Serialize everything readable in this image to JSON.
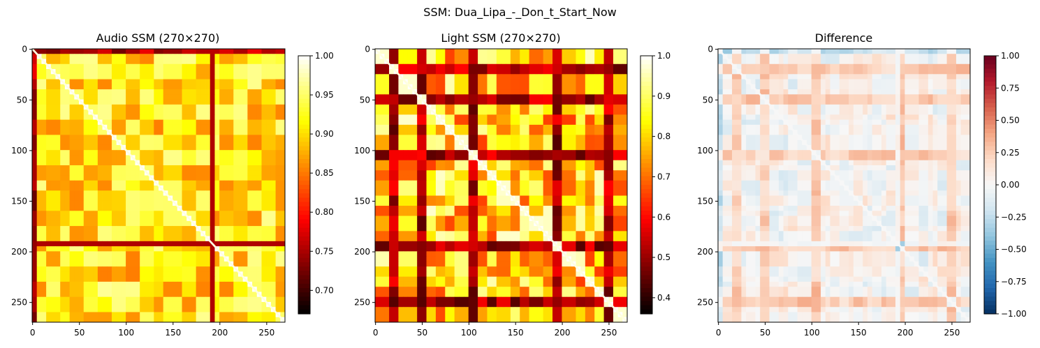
{
  "figure": {
    "suptitle": "SSM: Dua_Lipa_-_Don_t_Start_Now"
  },
  "chart_data": [
    {
      "type": "heatmap",
      "title": "Audio SSM (270×270)",
      "matrix_size": 270,
      "colormap": "hot",
      "xticks": [
        0,
        50,
        100,
        150,
        200,
        250
      ],
      "yticks": [
        0,
        50,
        100,
        150,
        200,
        250
      ],
      "colorbar": {
        "range": [
          0.67,
          1.0
        ],
        "ticks": [
          0.7,
          0.75,
          0.8,
          0.85,
          0.9,
          0.95,
          1.0
        ],
        "tick_labels": [
          "0.70",
          "0.75",
          "0.80",
          "0.85",
          "0.90",
          "0.95",
          "1.00"
        ]
      },
      "block_boundaries": [
        0,
        5,
        15,
        28,
        40,
        55,
        70,
        85,
        100,
        115,
        130,
        140,
        160,
        175,
        190,
        200,
        215,
        230,
        245,
        260,
        270
      ]
    },
    {
      "type": "heatmap",
      "title": "Light SSM (270×270)",
      "matrix_size": 270,
      "colormap": "hot",
      "xticks": [
        0,
        50,
        100,
        150,
        200,
        250
      ],
      "yticks": [
        0,
        50,
        100,
        150,
        200,
        250
      ],
      "colorbar": {
        "range": [
          0.36,
          1.0
        ],
        "ticks": [
          0.4,
          0.5,
          0.6,
          0.7,
          0.8,
          0.9,
          1.0
        ],
        "tick_labels": [
          "0.4",
          "0.5",
          "0.6",
          "0.7",
          "0.8",
          "0.9",
          "1.0"
        ]
      },
      "block_boundaries": [
        0,
        15,
        25,
        45,
        55,
        65,
        75,
        85,
        100,
        110,
        120,
        130,
        145,
        155,
        165,
        180,
        190,
        200,
        215,
        225,
        235,
        245,
        255,
        270
      ]
    },
    {
      "type": "heatmap",
      "title": "Difference",
      "matrix_size": 270,
      "colormap": "RdBu_r",
      "xticks": [
        0,
        50,
        100,
        150,
        200,
        250
      ],
      "yticks": [
        0,
        50,
        100,
        150,
        200,
        250
      ],
      "colorbar": {
        "range": [
          -1.0,
          1.0
        ],
        "ticks": [
          -1.0,
          -0.75,
          -0.5,
          -0.25,
          0.0,
          0.25,
          0.5,
          0.75,
          1.0
        ],
        "tick_labels": [
          "−1.00",
          "−0.75",
          "−0.50",
          "−0.25",
          "0.00",
          "0.25",
          "0.50",
          "0.75",
          "1.00"
        ]
      }
    }
  ]
}
